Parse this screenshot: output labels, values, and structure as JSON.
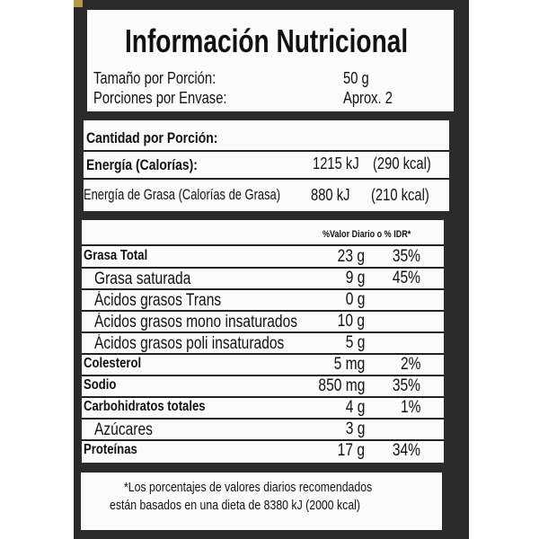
{
  "title": "Información Nutricional",
  "serving": {
    "size_label": "Tamaño por Porción:",
    "size_value": "50 g",
    "per_container_label": "Porciones por Envase:",
    "per_container_value": "Aprox. 2"
  },
  "energy": {
    "amount_label": "Cantidad por Porción:",
    "energy_label": "Energía (Calorías):",
    "energy_kj": "1215 kJ",
    "energy_kcal": "(290 kcal)",
    "fat_energy_label": "Energía de Grasa (Calorías de Grasa)",
    "fat_energy_kj": "880 kJ",
    "fat_energy_kcal": "(210 kcal)"
  },
  "nutrients": {
    "dv_header": "%Valor Diario o % IDR*",
    "rows": [
      {
        "name": "Grasa Total",
        "amount": "23 g",
        "dv": "35%",
        "bold": true
      },
      {
        "name": "Grasa saturada",
        "amount": "9 g",
        "dv": "45%",
        "bold": false
      },
      {
        "name": "Ácidos grasos Trans",
        "amount": "0 g",
        "dv": "",
        "bold": false
      },
      {
        "name": "Ácidos grasos mono insaturados",
        "amount": "10 g",
        "dv": "",
        "bold": false
      },
      {
        "name": "Ácidos grasos poli insaturados",
        "amount": "5 g",
        "dv": "",
        "bold": false
      },
      {
        "name": "Colesterol",
        "amount": "5 mg",
        "dv": "2%",
        "bold": true
      },
      {
        "name": "Sodio",
        "amount": "850 mg",
        "dv": "35%",
        "bold": true
      },
      {
        "name": "Carbohidratos totales",
        "amount": "4 g",
        "dv": "1%",
        "bold": true
      },
      {
        "name": "Azúcares",
        "amount": "3 g",
        "dv": "",
        "bold": false
      },
      {
        "name": "Proteínas",
        "amount": "17 g",
        "dv": "34%",
        "bold": true
      }
    ]
  },
  "footnote": {
    "line1": "*Los porcentajes de valores diarios recomendados",
    "line2": "están basados en una dieta de 8380 kJ (2000 kcal)"
  },
  "colors": {
    "panel": "#2b2b2c",
    "label_bg": "#fbfbfb",
    "text": "#111111"
  }
}
